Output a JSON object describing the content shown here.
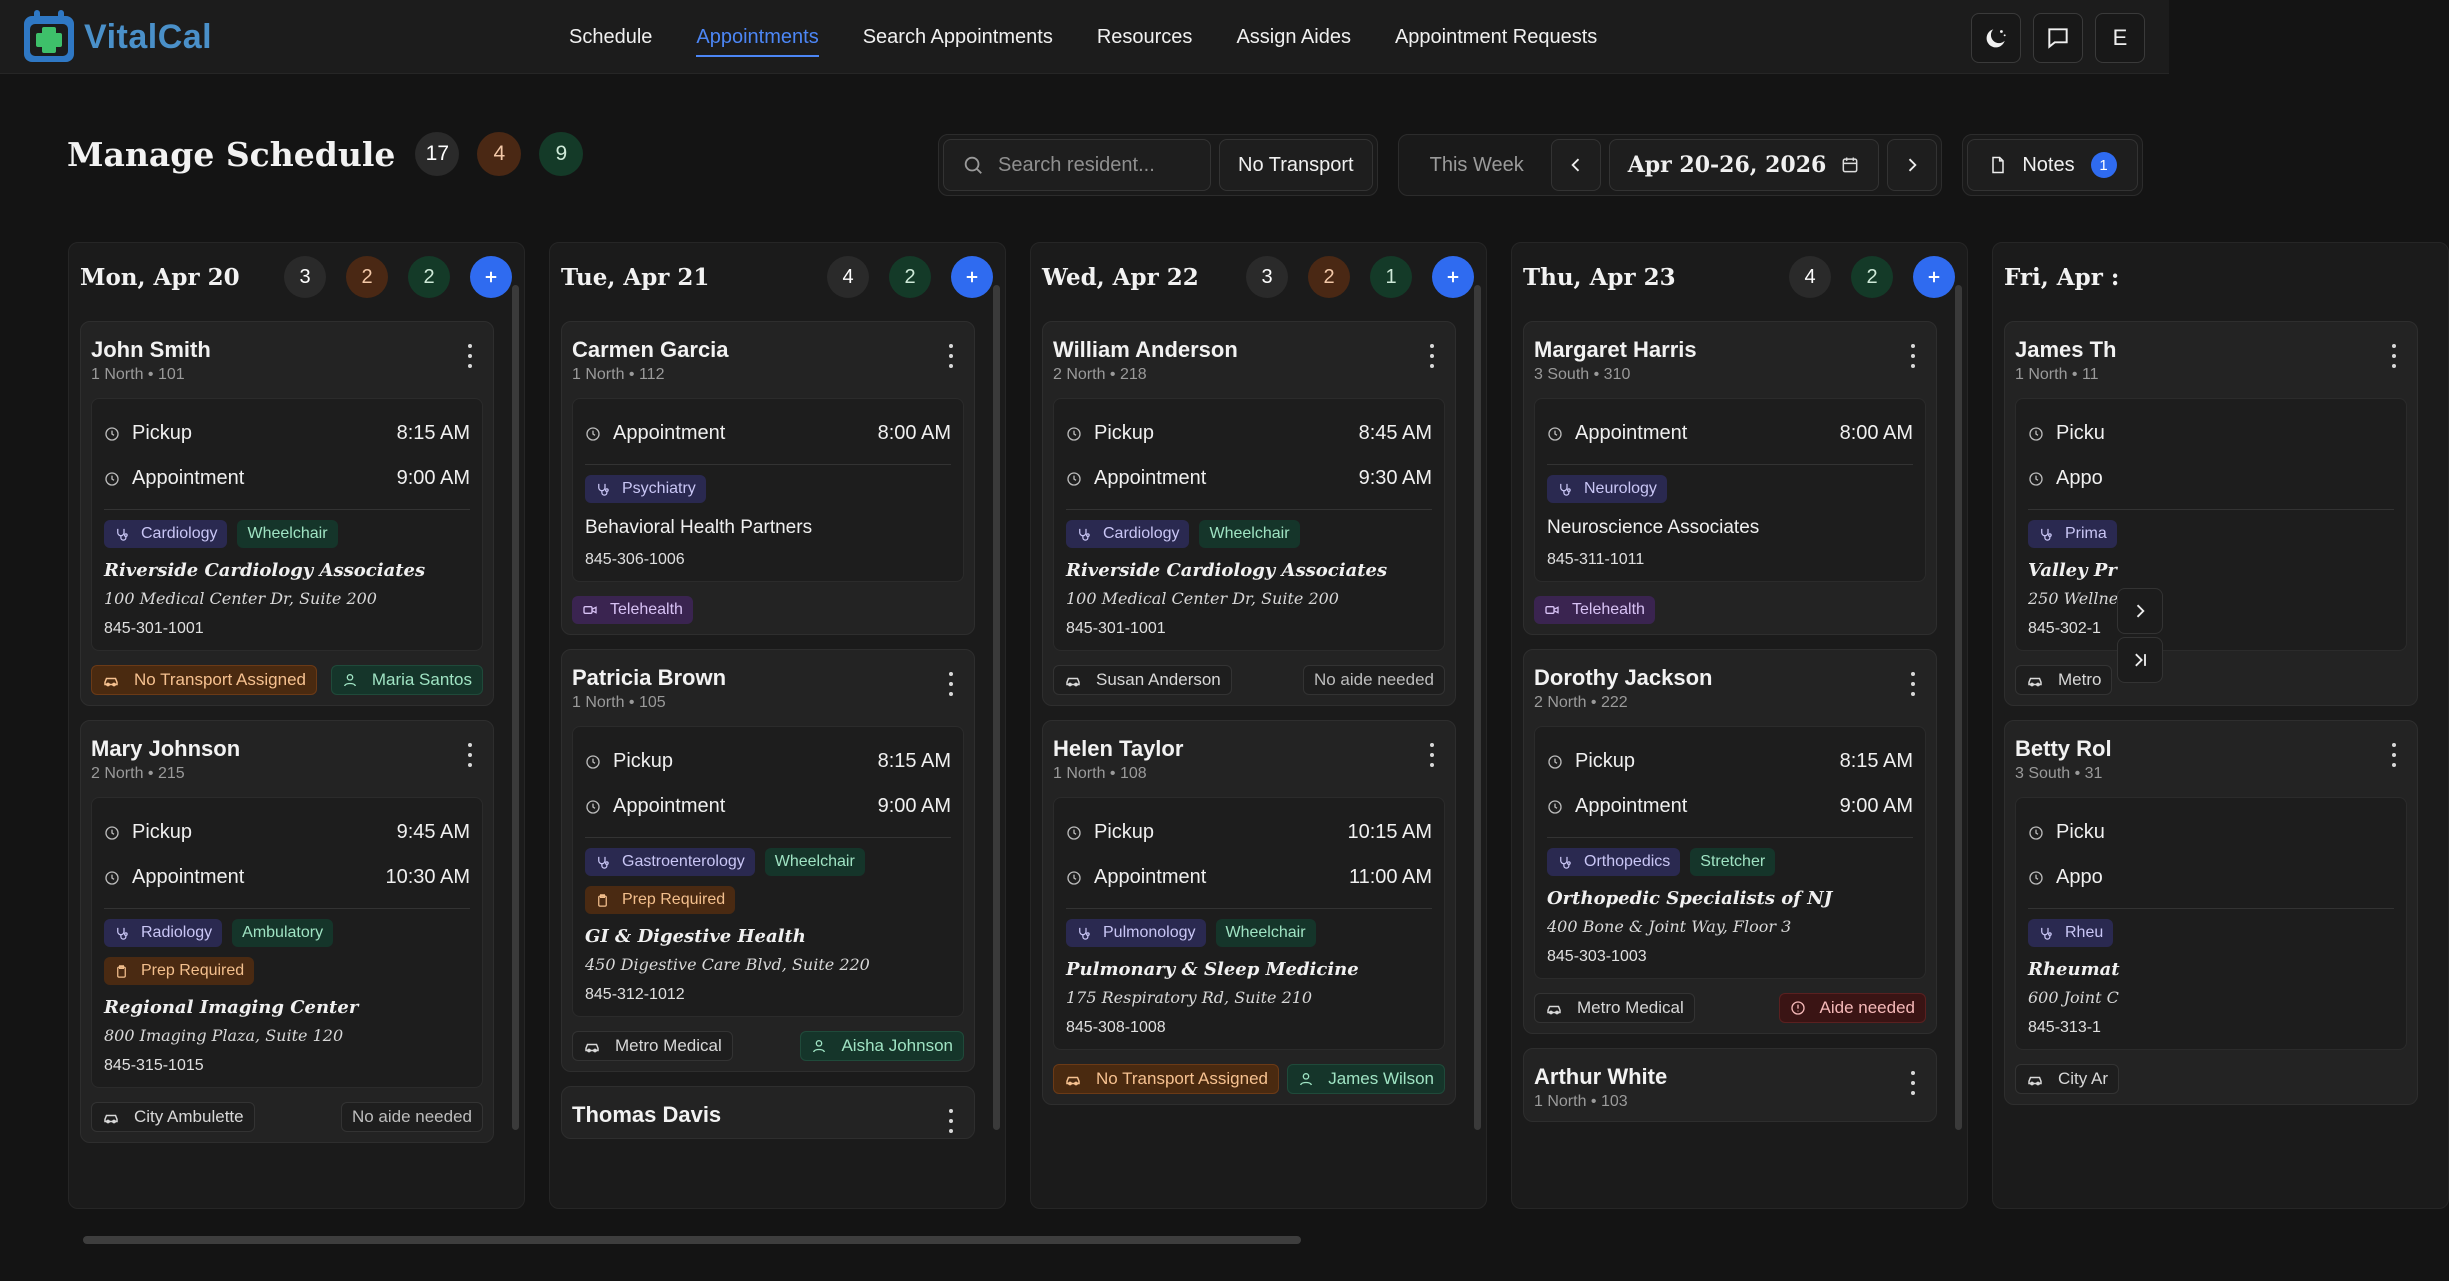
{
  "app": {
    "name": "VitalCal"
  },
  "nav": [
    "Schedule",
    "Appointments",
    "Search Appointments",
    "Resources",
    "Assign Aides",
    "Appointment Requests"
  ],
  "nav_active": "Appointments",
  "user_initial": "E",
  "header": {
    "title": "Manage Schedule",
    "counts": [
      "17",
      "4",
      "9"
    ]
  },
  "toolbar": {
    "search_placeholder": "Search resident...",
    "no_transport": "No Transport",
    "this_week": "This Week",
    "date_range": "Apr 20-26, 2026",
    "notes_label": "Notes",
    "notes_count": "1"
  },
  "colors": {
    "accent": "#2f6bf0",
    "background": "#141414"
  },
  "days": [
    {
      "title": "Mon, Apr 20",
      "badges": [
        {
          "v": "3",
          "k": "gray"
        },
        {
          "v": "2",
          "k": "orange"
        },
        {
          "v": "2",
          "k": "green"
        }
      ],
      "cards": [
        {
          "name": "John Smith",
          "unit": "1 North • 101",
          "times": [
            {
              "label": "Pickup",
              "time": "8:15 AM"
            },
            {
              "label": "Appointment",
              "time": "9:00 AM"
            }
          ],
          "tags": [
            {
              "text": "Cardiology",
              "type": "spec"
            },
            {
              "text": "Wheelchair",
              "type": "mob"
            }
          ],
          "facility": "Riverside Cardiology Associates",
          "address": "100 Medical Center Dr, Suite 200",
          "phone": "845-301-1001",
          "transport": {
            "text": "No Transport Assigned",
            "type": "warn"
          },
          "aide": {
            "text": "Maria Santos",
            "type": "aide"
          }
        },
        {
          "name": "Mary Johnson",
          "unit": "2 North • 215",
          "times": [
            {
              "label": "Pickup",
              "time": "9:45 AM"
            },
            {
              "label": "Appointment",
              "time": "10:30 AM"
            }
          ],
          "tags": [
            {
              "text": "Radiology",
              "type": "spec"
            },
            {
              "text": "Ambulatory",
              "type": "mob"
            },
            {
              "text": "Prep Required",
              "type": "prep"
            }
          ],
          "facility": "Regional Imaging Center",
          "address": "800 Imaging Plaza, Suite 120",
          "phone": "845-315-1015",
          "transport": {
            "text": "City Ambulette",
            "type": "trans"
          },
          "aide": {
            "text": "No aide needed",
            "type": "none"
          }
        }
      ]
    },
    {
      "title": "Tue, Apr 21",
      "badges": [
        {
          "v": "4",
          "k": "gray"
        },
        {
          "v": "2",
          "k": "green"
        }
      ],
      "cards": [
        {
          "name": "Carmen Garcia",
          "unit": "1 North • 112",
          "times": [
            {
              "label": "Appointment",
              "time": "8:00 AM"
            }
          ],
          "tags": [
            {
              "text": "Psychiatry",
              "type": "spec"
            }
          ],
          "facility": "Behavioral Health Partners",
          "facility_plain": true,
          "phone": "845-306-1006",
          "telehealth": "Telehealth"
        },
        {
          "name": "Patricia Brown",
          "unit": "1 North • 105",
          "times": [
            {
              "label": "Pickup",
              "time": "8:15 AM"
            },
            {
              "label": "Appointment",
              "time": "9:00 AM"
            }
          ],
          "tags": [
            {
              "text": "Gastroenterology",
              "type": "spec"
            },
            {
              "text": "Wheelchair",
              "type": "mob"
            },
            {
              "text": "Prep Required",
              "type": "prep"
            }
          ],
          "facility": "GI & Digestive Health",
          "address": "450 Digestive Care Blvd, Suite 220",
          "phone": "845-312-1012",
          "transport": {
            "text": "Metro Medical",
            "type": "trans"
          },
          "aide": {
            "text": "Aisha Johnson",
            "type": "aide"
          }
        },
        {
          "name": "Thomas Davis",
          "unit": "",
          "times": [],
          "tags": []
        }
      ]
    },
    {
      "title": "Wed, Apr 22",
      "badges": [
        {
          "v": "3",
          "k": "gray"
        },
        {
          "v": "2",
          "k": "orange"
        },
        {
          "v": "1",
          "k": "green"
        }
      ],
      "cards": [
        {
          "name": "William Anderson",
          "unit": "2 North • 218",
          "times": [
            {
              "label": "Pickup",
              "time": "8:45 AM"
            },
            {
              "label": "Appointment",
              "time": "9:30 AM"
            }
          ],
          "tags": [
            {
              "text": "Cardiology",
              "type": "spec"
            },
            {
              "text": "Wheelchair",
              "type": "mob"
            }
          ],
          "facility": "Riverside Cardiology Associates",
          "address": "100 Medical Center Dr, Suite 200",
          "phone": "845-301-1001",
          "transport": {
            "text": "Susan Anderson",
            "type": "trans"
          },
          "aide": {
            "text": "No aide needed",
            "type": "none"
          }
        },
        {
          "name": "Helen Taylor",
          "unit": "1 North • 108",
          "times": [
            {
              "label": "Pickup",
              "time": "10:15 AM"
            },
            {
              "label": "Appointment",
              "time": "11:00 AM"
            }
          ],
          "tags": [
            {
              "text": "Pulmonology",
              "type": "spec"
            },
            {
              "text": "Wheelchair",
              "type": "mob"
            }
          ],
          "facility": "Pulmonary & Sleep Medicine",
          "address": "175 Respiratory Rd, Suite 210",
          "phone": "845-308-1008",
          "transport": {
            "text": "No Transport Assigned",
            "type": "warn"
          },
          "aide": {
            "text": "James Wilson",
            "type": "aide"
          }
        }
      ]
    },
    {
      "title": "Thu, Apr 23",
      "badges": [
        {
          "v": "4",
          "k": "gray"
        },
        {
          "v": "2",
          "k": "green"
        }
      ],
      "cards": [
        {
          "name": "Margaret Harris",
          "unit": "3 South • 310",
          "times": [
            {
              "label": "Appointment",
              "time": "8:00 AM"
            }
          ],
          "tags": [
            {
              "text": "Neurology",
              "type": "spec"
            }
          ],
          "facility": "Neuroscience Associates",
          "facility_plain": true,
          "phone": "845-311-1011",
          "telehealth": "Telehealth"
        },
        {
          "name": "Dorothy Jackson",
          "unit": "2 North • 222",
          "times": [
            {
              "label": "Pickup",
              "time": "8:15 AM"
            },
            {
              "label": "Appointment",
              "time": "9:00 AM"
            }
          ],
          "tags": [
            {
              "text": "Orthopedics",
              "type": "spec"
            },
            {
              "text": "Stretcher",
              "type": "mob"
            }
          ],
          "facility": "Orthopedic Specialists of NJ",
          "address": "400 Bone & Joint Way, Floor 3",
          "phone": "845-303-1003",
          "transport": {
            "text": "Metro Medical",
            "type": "trans"
          },
          "aide": {
            "text": "Aide needed",
            "type": "need"
          }
        },
        {
          "name": "Arthur White",
          "unit": "1 North • 103",
          "times": [],
          "tags": []
        }
      ]
    },
    {
      "title": "Fri, Apr :",
      "badges": [],
      "cards": [
        {
          "name": "James Th",
          "unit": "1 North • 11",
          "times": [
            {
              "label": "Picku",
              "time": ""
            },
            {
              "label": "Appo",
              "time": ""
            }
          ],
          "tags": [
            {
              "text": "Prima",
              "type": "spec"
            }
          ],
          "facility": "Valley Pr",
          "address": "250 Wellne",
          "phone": "845-302-1",
          "transport": {
            "text": "Metro",
            "type": "trans"
          }
        },
        {
          "name": "Betty Rol",
          "unit": "3 South • 31",
          "times": [
            {
              "label": "Picku",
              "time": ""
            },
            {
              "label": "Appo",
              "time": ""
            }
          ],
          "tags": [
            {
              "text": "Rheu",
              "type": "spec"
            }
          ],
          "facility": "Rheumat",
          "address": "600 Joint C",
          "phone": "845-313-1",
          "transport": {
            "text": "City Ar",
            "type": "trans"
          }
        }
      ]
    }
  ]
}
